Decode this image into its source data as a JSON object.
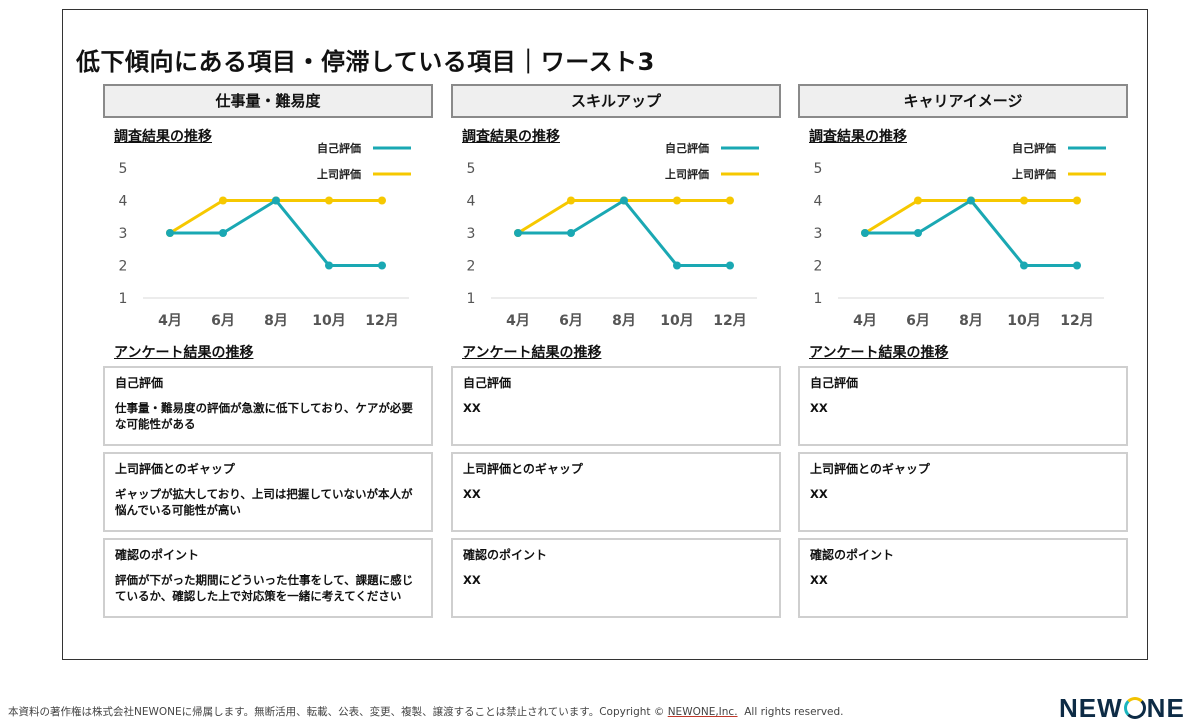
{
  "title": "低下傾向にある項目・停滞している項目｜ワースト3",
  "chart_section_title": "調査結果の推移",
  "survey_section_title": "アンケート結果の推移",
  "legend": {
    "self": "自己評価",
    "boss": "上司評価"
  },
  "colors": {
    "self": "#1aa8b3",
    "boss": "#f6c800",
    "axis": "#d9d9d9",
    "tick": "#555555"
  },
  "box_labels": {
    "self": "自己評価",
    "gap": "上司評価とのギャップ",
    "point": "確認のポイント"
  },
  "columns": [
    {
      "header": "仕事量・難易度",
      "self_text": "仕事量・難易度の評価が急激に低下しており、ケアが必要な可能性がある",
      "gap_text": "ギャップが拡大しており、上司は把握していないが本人が悩んでいる可能性が高い",
      "point_text": "評価が下がった期間にどういった仕事をして、課題に感じているか、確認した上で対応策を一緒に考えてください"
    },
    {
      "header": "スキルアップ",
      "self_text": "XX",
      "gap_text": "XX",
      "point_text": "XX"
    },
    {
      "header": "キャリアイメージ",
      "self_text": "XX",
      "gap_text": "XX",
      "point_text": "XX"
    }
  ],
  "chart_data": [
    {
      "type": "line",
      "title": "仕事量・難易度",
      "categories": [
        "4月",
        "6月",
        "8月",
        "10月",
        "12月"
      ],
      "series": [
        {
          "name": "自己評価",
          "values": [
            3,
            3,
            4,
            2,
            2
          ]
        },
        {
          "name": "上司評価",
          "values": [
            3,
            4,
            4,
            4,
            4
          ]
        }
      ],
      "yticks": [
        "1",
        "2",
        "3",
        "4",
        "5"
      ],
      "ylim": [
        1,
        5
      ]
    },
    {
      "type": "line",
      "title": "スキルアップ",
      "categories": [
        "4月",
        "6月",
        "8月",
        "10月",
        "12月"
      ],
      "series": [
        {
          "name": "自己評価",
          "values": [
            3,
            3,
            4,
            2,
            2
          ]
        },
        {
          "name": "上司評価",
          "values": [
            3,
            4,
            4,
            4,
            4
          ]
        }
      ],
      "yticks": [
        "1",
        "2",
        "3",
        "4",
        "5"
      ],
      "ylim": [
        1,
        5
      ]
    },
    {
      "type": "line",
      "title": "キャリアイメージ",
      "categories": [
        "4月",
        "6月",
        "8月",
        "10月",
        "12月"
      ],
      "series": [
        {
          "name": "自己評価",
          "values": [
            3,
            3,
            4,
            2,
            2
          ]
        },
        {
          "name": "上司評価",
          "values": [
            3,
            4,
            4,
            4,
            4
          ]
        }
      ],
      "yticks": [
        "1",
        "2",
        "3",
        "4",
        "5"
      ],
      "ylim": [
        1,
        5
      ]
    }
  ],
  "footer": {
    "text": "本資料の著作権は株式会社NEWONEに帰属します。無断活用、転載、公表、変更、複製、譲渡することは禁止されています。Copyright",
    "copyright_mark": "©",
    "company": "NEWONE,Inc.",
    "rights": "All rights reserved."
  },
  "logo": {
    "left": "NEW",
    "o": "O",
    "right": "NE"
  }
}
